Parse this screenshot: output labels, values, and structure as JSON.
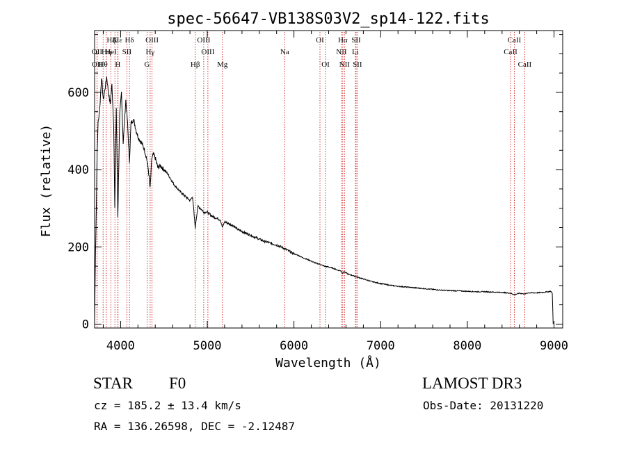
{
  "chart_data": {
    "type": "line",
    "title": "spec-56647-VB138S03V2_sp14-122.fits",
    "xlabel": "Wavelength (Å)",
    "ylabel": "Flux (relative)",
    "xlim": [
      3700,
      9100
    ],
    "ylim": [
      -10,
      760
    ],
    "x_ticks": [
      4000,
      5000,
      6000,
      7000,
      8000,
      9000
    ],
    "x_tick_labels": [
      "4000",
      "5000",
      "6000",
      "7000",
      "8000",
      "9000"
    ],
    "y_ticks": [
      0,
      200,
      400,
      600
    ],
    "y_tick_labels": [
      "0",
      "200",
      "400",
      "600"
    ],
    "grid": false,
    "series": [
      {
        "name": "spectrum",
        "x": [
          3700,
          3710,
          3720,
          3730,
          3740,
          3760,
          3780,
          3800,
          3820,
          3840,
          3860,
          3880,
          3900,
          3920,
          3933,
          3950,
          3968,
          3990,
          4010,
          4030,
          4060,
          4080,
          4102,
          4120,
          4150,
          4180,
          4210,
          4240,
          4270,
          4300,
          4320,
          4340,
          4360,
          4380,
          4400,
          4430,
          4460,
          4500,
          4540,
          4580,
          4620,
          4660,
          4700,
          4750,
          4800,
          4830,
          4861,
          4890,
          4920,
          4960,
          5000,
          5050,
          5100,
          5150,
          5175,
          5200,
          5250,
          5300,
          5350,
          5400,
          5450,
          5500,
          5550,
          5600,
          5650,
          5700,
          5750,
          5800,
          5850,
          5893,
          5950,
          6000,
          6050,
          6100,
          6150,
          6200,
          6250,
          6300,
          6350,
          6400,
          6450,
          6500,
          6540,
          6563,
          6580,
          6620,
          6700,
          6800,
          6900,
          7000,
          7100,
          7200,
          7300,
          7400,
          7500,
          7600,
          7700,
          7800,
          7900,
          8000,
          8100,
          8200,
          8300,
          8400,
          8500,
          8542,
          8600,
          8662,
          8700,
          8800,
          8900,
          8960,
          8980,
          8990
        ],
        "values": [
          0,
          180,
          300,
          450,
          520,
          560,
          640,
          580,
          610,
          640,
          600,
          570,
          620,
          520,
          300,
          560,
          280,
          540,
          600,
          470,
          580,
          520,
          420,
          520,
          530,
          500,
          480,
          470,
          455,
          430,
          400,
          350,
          430,
          440,
          430,
          405,
          410,
          400,
          390,
          375,
          360,
          350,
          340,
          330,
          320,
          330,
          250,
          305,
          300,
          290,
          290,
          280,
          275,
          270,
          250,
          265,
          260,
          255,
          245,
          240,
          235,
          230,
          225,
          220,
          215,
          212,
          208,
          205,
          200,
          195,
          188,
          182,
          178,
          172,
          168,
          163,
          158,
          155,
          150,
          148,
          145,
          140,
          138,
          132,
          136,
          130,
          124,
          117,
          110,
          105,
          101,
          98,
          96,
          94,
          92,
          90,
          88,
          87,
          86,
          85,
          84,
          84,
          83,
          82,
          80,
          76,
          80,
          78,
          81,
          81,
          83,
          85,
          80,
          0
        ]
      }
    ],
    "line_labels": [
      {
        "label": "Hε",
        "x": 3970,
        "row": 1
      },
      {
        "label": "Hζ",
        "x": 3889,
        "row": 1
      },
      {
        "label": "K",
        "x": 3934,
        "row": 1
      },
      {
        "label": "Hδ",
        "x": 4102,
        "row": 1
      },
      {
        "label": "OII",
        "x": 3727,
        "row": 2
      },
      {
        "label": "OII",
        "x": 3729,
        "row": 3
      },
      {
        "label": "OIII",
        "x": 4363,
        "row": 1
      },
      {
        "label": "OIII",
        "x": 4959,
        "row": 1
      },
      {
        "label": "OI",
        "x": 6300,
        "row": 1
      },
      {
        "label": "Hα",
        "x": 6563,
        "row": 1
      },
      {
        "label": "SII",
        "x": 6717,
        "row": 1
      },
      {
        "label": "CaII",
        "x": 8542,
        "row": 1
      },
      {
        "label": "Hη",
        "x": 3835,
        "row": 2
      },
      {
        "label": "HeI",
        "x": 3888,
        "row": 2
      },
      {
        "label": "SII",
        "x": 4072,
        "row": 2
      },
      {
        "label": "Hγ",
        "x": 4341,
        "row": 2
      },
      {
        "label": "OIII",
        "x": 5007,
        "row": 2
      },
      {
        "label": "Na",
        "x": 5893,
        "row": 2
      },
      {
        "label": "NII",
        "x": 6548,
        "row": 2
      },
      {
        "label": "Li",
        "x": 6708,
        "row": 2
      },
      {
        "label": "CaII",
        "x": 8498,
        "row": 2
      },
      {
        "label": "Hθ",
        "x": 3798,
        "row": 3
      },
      {
        "label": "H",
        "x": 3968,
        "row": 3
      },
      {
        "label": "G",
        "x": 4305,
        "row": 3
      },
      {
        "label": "Hβ",
        "x": 4861,
        "row": 3
      },
      {
        "label": "Mg",
        "x": 5175,
        "row": 3
      },
      {
        "label": "OI",
        "x": 6364,
        "row": 3
      },
      {
        "label": "NII",
        "x": 6583,
        "row": 3
      },
      {
        "label": "SII",
        "x": 6731,
        "row": 3
      },
      {
        "label": "CaII",
        "x": 8662,
        "row": 3
      }
    ],
    "line_positions": [
      3727,
      3729,
      3798,
      3835,
      3889,
      3934,
      3968,
      3970,
      4072,
      4102,
      4305,
      4341,
      4363,
      4861,
      4959,
      5007,
      5175,
      5893,
      6300,
      6364,
      6548,
      6563,
      6583,
      6708,
      6717,
      6731,
      8498,
      8542,
      8662
    ]
  },
  "info": {
    "object_class": "STAR",
    "subclass": "F0",
    "survey": "LAMOST DR3",
    "cz_text": "cz = 185.2 ± 13.4 km/s",
    "obs_date_text": "Obs-Date: 20131220",
    "coords_text": "RA = 136.26598, DEC =  -2.12487"
  },
  "colors": {
    "spectrum": "#000000",
    "line_marker": "#cc0000",
    "axis": "#000000",
    "background": "#ffffff"
  }
}
